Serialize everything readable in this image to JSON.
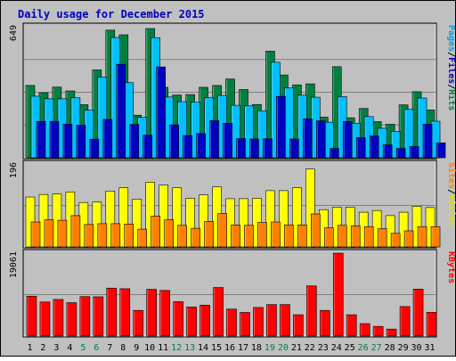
{
  "chart_data": {
    "type": "bar",
    "title": "Daily usage for December 2015",
    "categories": [
      "1",
      "2",
      "3",
      "4",
      "5",
      "6",
      "7",
      "8",
      "9",
      "10",
      "11",
      "12",
      "13",
      "14",
      "15",
      "16",
      "17",
      "18",
      "19",
      "20",
      "21",
      "22",
      "23",
      "24",
      "25",
      "26",
      "27",
      "28",
      "29",
      "30",
      "31"
    ],
    "weekend_days": [
      "5",
      "6",
      "12",
      "13",
      "19",
      "20",
      "26",
      "27"
    ],
    "panels": [
      {
        "id": "hits_files_pages",
        "ymax_label": "649",
        "ylim": [
          0,
          649
        ],
        "legend": [
          "Pages",
          "/",
          "Files",
          "/",
          "Hits"
        ],
        "series": [
          {
            "name": "Hits",
            "color": "#008040",
            "values": [
              358,
              322,
              350,
              331,
              263,
              435,
              632,
              609,
              211,
              640,
              349,
              311,
              313,
              349,
              358,
              390,
              338,
              264,
              528,
              410,
              361,
              366,
              201,
              451,
              198,
              244,
              179,
              166,
              262,
              327,
              237
            ]
          },
          {
            "name": "Files",
            "color": "#00c0ff",
            "values": [
              305,
              292,
              292,
              297,
              236,
              400,
              596,
              372,
              200,
              595,
              301,
              278,
              276,
              297,
              309,
              260,
              257,
              233,
              473,
              346,
              310,
              300,
              176,
              303,
              171,
              204,
              146,
              130,
              240,
              296,
              181
            ]
          },
          {
            "name": "Pages",
            "color": "#0000c0",
            "values": [
              180,
              180,
              166,
              161,
              92,
              190,
              463,
              165,
              112,
              450,
              163,
              110,
              120,
              184,
              171,
              95,
              93,
              94,
              304,
              93,
              193,
              183,
              46,
              180,
              100,
              108,
              64,
              46,
              56,
              166,
              74
            ]
          }
        ]
      },
      {
        "id": "visits_sites",
        "ymax_label": "196",
        "ylim": [
          0,
          196
        ],
        "legend": [
          "Sites",
          "/",
          "Visits"
        ],
        "series": [
          {
            "name": "Visits",
            "color": "#ffff00",
            "values": [
              118,
              124,
              125,
              130,
              105,
              106,
              132,
              140,
              113,
              153,
              146,
              140,
              115,
              123,
              142,
              114,
              114,
              115,
              133,
              133,
              140,
              184,
              88,
              94,
              94,
              82,
              86,
              74,
              82,
              96,
              93
            ]
          },
          {
            "name": "Sites",
            "color": "#ff8000",
            "values": [
              59,
              64,
              63,
              74,
              53,
              55,
              55,
              54,
              42,
              73,
              64,
              51,
              44,
              60,
              79,
              52,
              51,
              58,
              59,
              52,
              52,
              78,
              45,
              51,
              50,
              48,
              43,
              32,
              38,
              48,
              48
            ]
          }
        ]
      },
      {
        "id": "kbytes",
        "ymax_label": "19061",
        "ylim": [
          0,
          19061
        ],
        "legend": [
          "KBytes"
        ],
        "series": [
          {
            "name": "KBytes",
            "color": "#ff0000",
            "values": [
              9170,
              7832,
              8416,
              7674,
              9068,
              9026,
              11020,
              10882,
              5899,
              10739,
              10490,
              7900,
              6680,
              7100,
              11156,
              6191,
              5432,
              6574,
              7240,
              7240,
              4900,
              11538,
              5899,
              19061,
              4900,
              2856,
              2216,
              1602,
              6779,
              10779,
              5450
            ]
          }
        ]
      }
    ],
    "colors": {
      "background": "#c0c0c0",
      "title": "#0000c0",
      "grid": "#808080",
      "weekend": "#008040",
      "weekday": "#000000"
    }
  }
}
